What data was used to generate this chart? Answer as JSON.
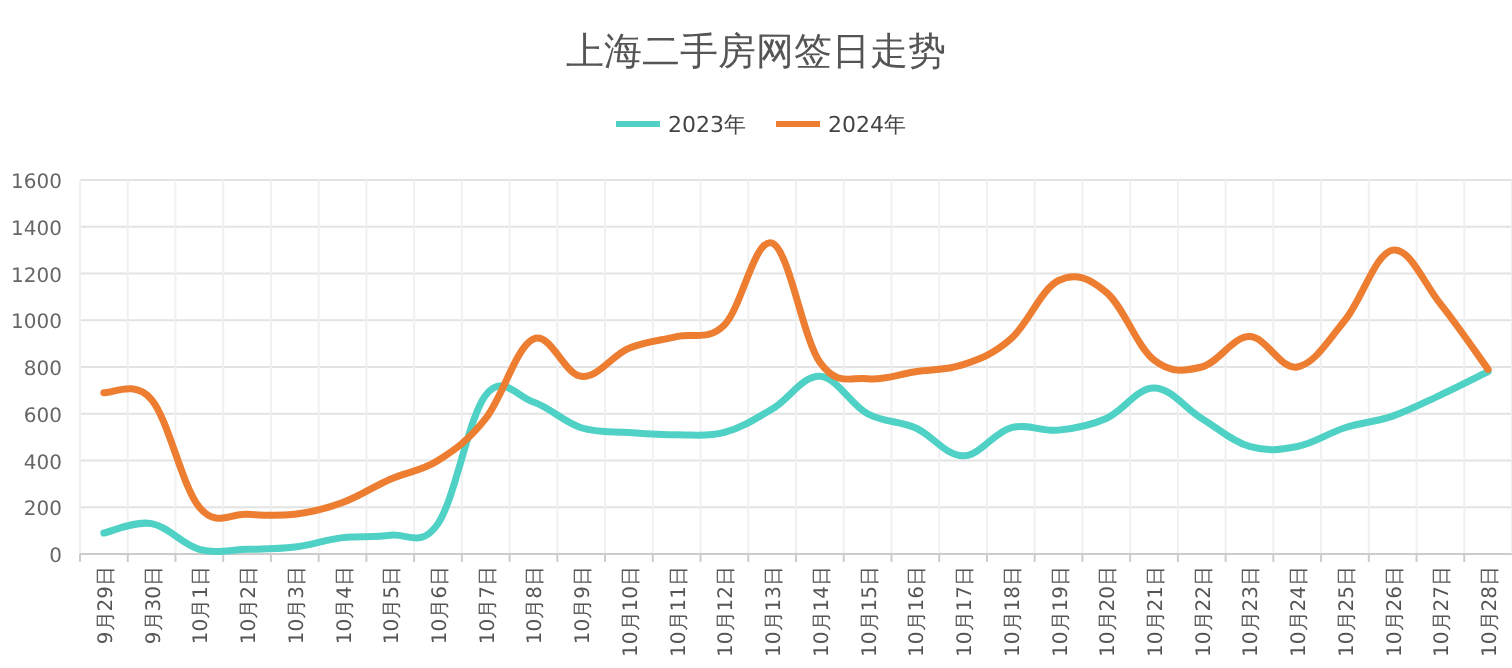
{
  "chart_data": {
    "type": "line",
    "title": "上海二手房网签日走势",
    "categories": [
      "9月29日",
      "9月30日",
      "10月1日",
      "10月2日",
      "10月3日",
      "10月4日",
      "10月5日",
      "10月6日",
      "10月7日",
      "10月8日",
      "10月9日",
      "10月10日",
      "10月11日",
      "10月12日",
      "10月13日",
      "10月14日",
      "10月15日",
      "10月16日",
      "10月17日",
      "10月18日",
      "10月19日",
      "10月20日",
      "10月21日",
      "10月22日",
      "10月23日",
      "10月24日",
      "10月25日",
      "10月26日",
      "10月27日",
      "10月28日"
    ],
    "series": [
      {
        "name": "2023年",
        "color": "#4fd1c5",
        "values": [
          90,
          130,
          20,
          20,
          30,
          70,
          80,
          130,
          680,
          650,
          540,
          520,
          510,
          520,
          620,
          760,
          600,
          540,
          420,
          540,
          530,
          580,
          710,
          580,
          460,
          460,
          540,
          590,
          680,
          780
        ]
      },
      {
        "name": "2024年",
        "color": "#ed7d31",
        "values": [
          690,
          660,
          200,
          170,
          170,
          220,
          320,
          400,
          580,
          920,
          760,
          880,
          930,
          980,
          1330,
          820,
          750,
          780,
          810,
          920,
          1170,
          1120,
          830,
          800,
          930,
          800,
          1000,
          1300,
          1070,
          790
        ]
      }
    ],
    "ylim": [
      0,
      1600
    ],
    "yticks": [
      0,
      200,
      400,
      600,
      800,
      1000,
      1200,
      1400,
      1600
    ],
    "grid": true,
    "legend": "top",
    "marker": "none",
    "line_style": "solid"
  }
}
